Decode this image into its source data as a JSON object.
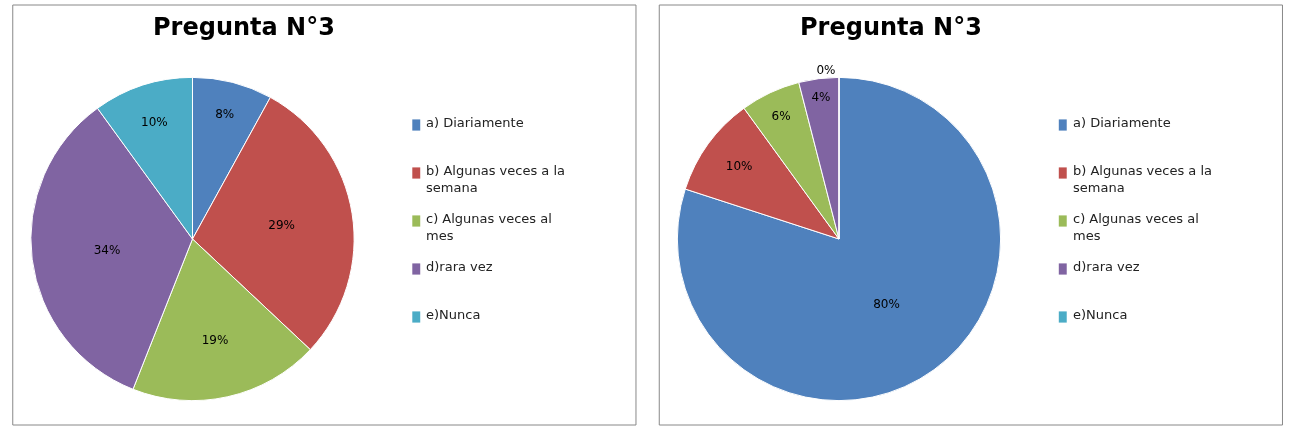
{
  "chart_data": [
    {
      "type": "pie",
      "title": "Pregunta N°3",
      "categories": [
        "a) Diariamente",
        "b) Algunas veces a la semana",
        "c) Algunas veces al mes",
        "d)rara vez",
        "e)Nunca"
      ],
      "values": [
        8,
        29,
        19,
        34,
        10
      ],
      "colors": [
        "#4f81bd",
        "#c0504d",
        "#9bbb59",
        "#8064a2",
        "#4bacc6"
      ],
      "value_labels": [
        "8%",
        "29%",
        "19%",
        "34%",
        "10%"
      ],
      "legend": "right"
    },
    {
      "type": "pie",
      "title": "Pregunta N°3",
      "categories": [
        "a) Diariamente",
        "b) Algunas veces a la semana",
        "c) Algunas veces al mes",
        "d)rara vez",
        "e)Nunca"
      ],
      "values": [
        80,
        10,
        6,
        4,
        0
      ],
      "colors": [
        "#4f81bd",
        "#c0504d",
        "#9bbb59",
        "#8064a2",
        "#4bacc6"
      ],
      "value_labels": [
        "80%",
        "10%",
        "6%",
        "4%",
        "0%"
      ],
      "legend": "right"
    }
  ]
}
